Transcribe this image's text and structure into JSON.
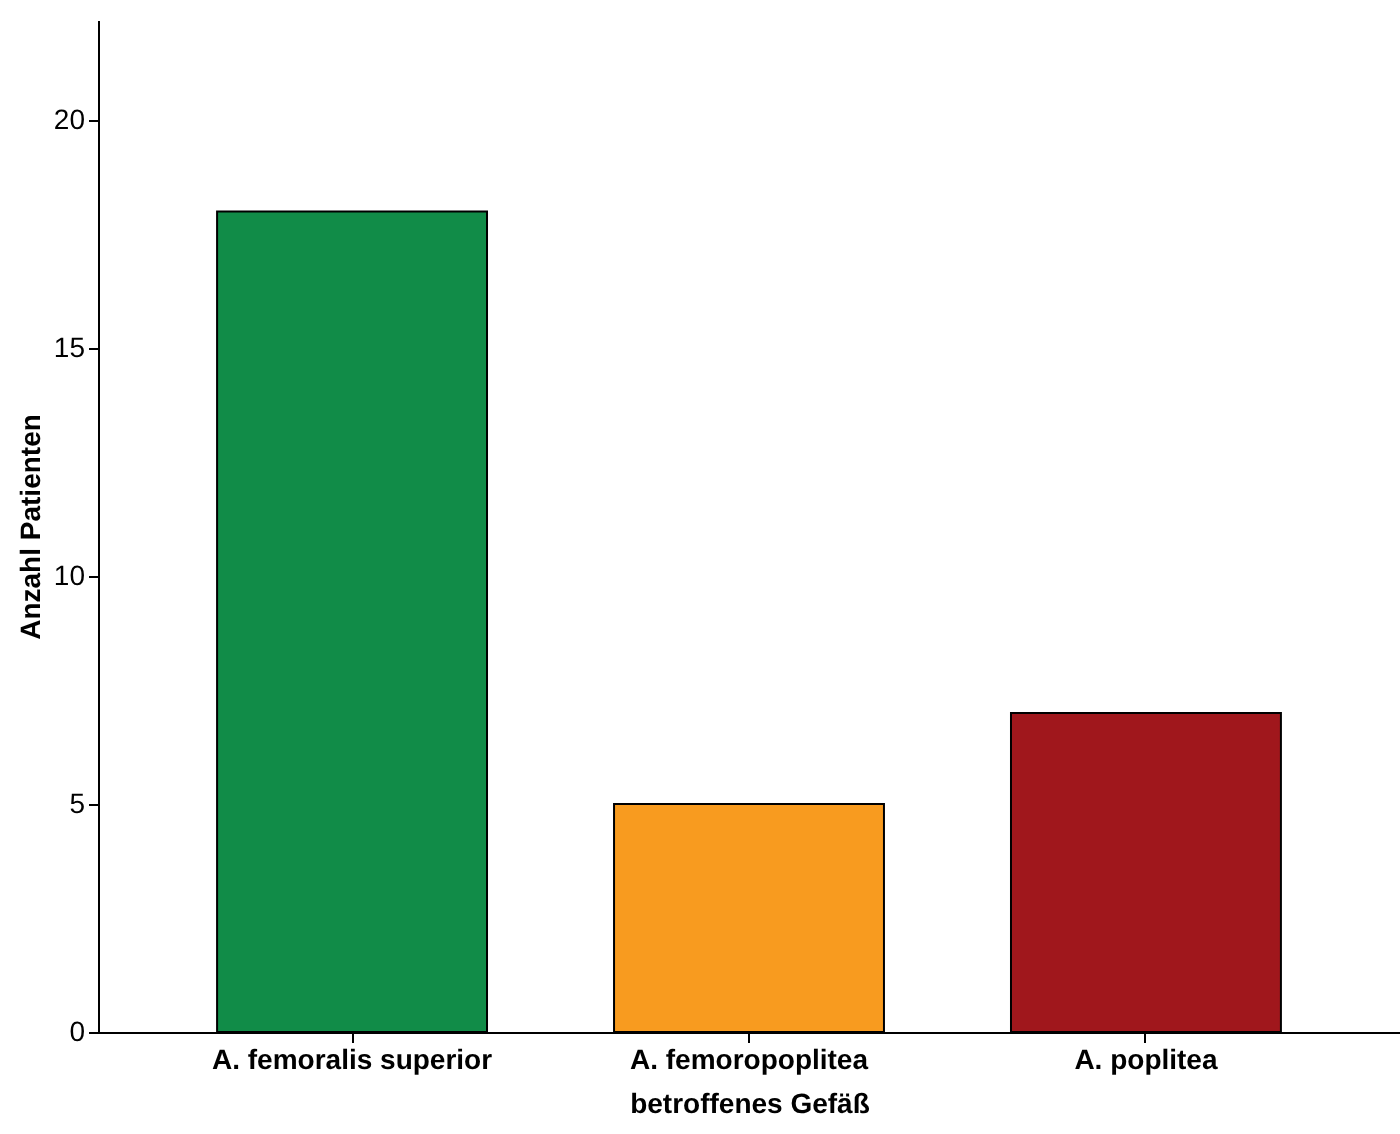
{
  "chart_data": {
    "type": "bar",
    "xlabel": "betroffenes Gefäß",
    "ylabel": "Anzahl Patienten",
    "categories": [
      "A. femoralis superior",
      "A. femoropoplitea",
      "A. poplitea"
    ],
    "values": [
      18,
      5,
      7
    ],
    "colors": [
      "#118c48",
      "#f89b1f",
      "#a0171c"
    ],
    "ylim": [
      0,
      22.2
    ],
    "yticks": [
      0,
      5,
      10,
      15,
      20
    ],
    "grid": false
  }
}
